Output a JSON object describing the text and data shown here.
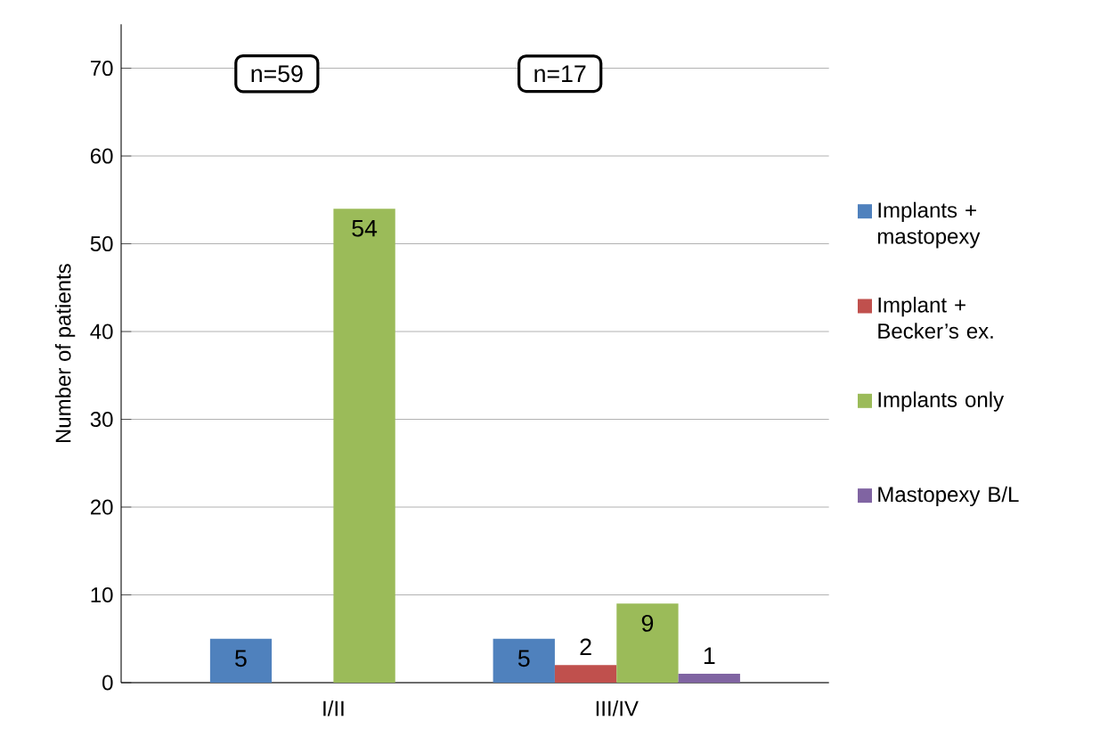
{
  "chart_data": {
    "type": "bar",
    "ylabel": "Number of patients",
    "categories": [
      "I/II",
      "III/IV"
    ],
    "series": [
      {
        "name": "Implants + mastopexy",
        "color": "#4f81bd",
        "values": [
          5,
          5
        ]
      },
      {
        "name": "Implant + Becker’s ex.",
        "color": "#c0504d",
        "values": [
          null,
          2
        ]
      },
      {
        "name": "Implants only",
        "color": "#9bbb59",
        "values": [
          54,
          9
        ]
      },
      {
        "name": "Mastopexy B/L",
        "color": "#8064a2",
        "values": [
          null,
          1
        ]
      }
    ],
    "ylim": [
      0,
      75
    ],
    "yticks": [
      0,
      10,
      20,
      30,
      40,
      50,
      60,
      70
    ],
    "grid": "y",
    "legend": "right",
    "data_labels": true,
    "annotations": [
      "n=59",
      "n=17"
    ]
  }
}
